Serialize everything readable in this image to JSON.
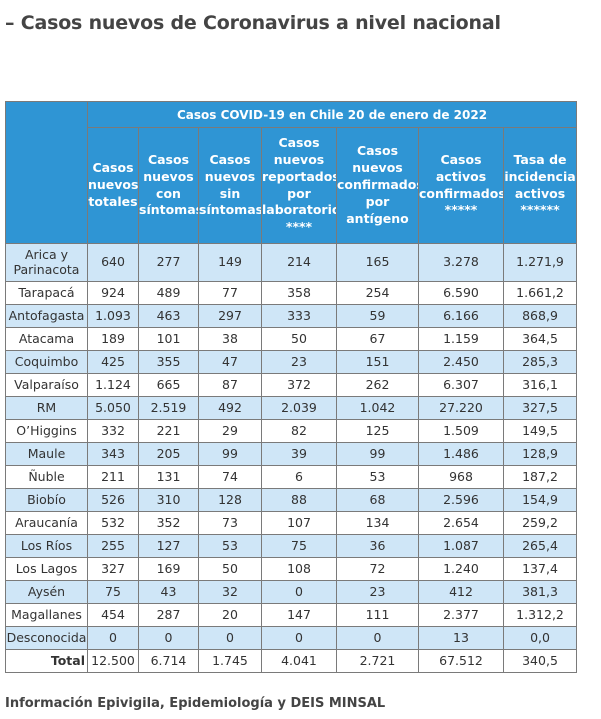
{
  "page": {
    "title": "– Casos nuevos de Coronavirus a nivel nacional",
    "source": "Información Epivigila, Epidemiología y DEIS MINSAL"
  },
  "table": {
    "super_header": "Casos COVID-19 en Chile 20 de enero de 2022",
    "columns": [
      "Casos nuevos totales",
      "Casos nuevos con síntomas",
      "Casos nuevos sin síntomas",
      "Casos nuevos reportados por laboratorio ****",
      "Casos nuevos confirmados por antígeno",
      "Casos activos confirmados *****",
      "Tasa de incidencia activos ******"
    ],
    "rows": [
      {
        "region": "Arica y Parinacota",
        "values": [
          "640",
          "277",
          "149",
          "214",
          "165",
          "3.278",
          "1.271,9"
        ]
      },
      {
        "region": "Tarapacá",
        "values": [
          "924",
          "489",
          "77",
          "358",
          "254",
          "6.590",
          "1.661,2"
        ]
      },
      {
        "region": "Antofagasta",
        "values": [
          "1.093",
          "463",
          "297",
          "333",
          "59",
          "6.166",
          "868,9"
        ]
      },
      {
        "region": "Atacama",
        "values": [
          "189",
          "101",
          "38",
          "50",
          "67",
          "1.159",
          "364,5"
        ]
      },
      {
        "region": "Coquimbo",
        "values": [
          "425",
          "355",
          "47",
          "23",
          "151",
          "2.450",
          "285,3"
        ]
      },
      {
        "region": "Valparaíso",
        "values": [
          "1.124",
          "665",
          "87",
          "372",
          "262",
          "6.307",
          "316,1"
        ]
      },
      {
        "region": "RM",
        "values": [
          "5.050",
          "2.519",
          "492",
          "2.039",
          "1.042",
          "27.220",
          "327,5"
        ]
      },
      {
        "region": "O’Higgins",
        "values": [
          "332",
          "221",
          "29",
          "82",
          "125",
          "1.509",
          "149,5"
        ]
      },
      {
        "region": "Maule",
        "values": [
          "343",
          "205",
          "99",
          "39",
          "99",
          "1.486",
          "128,9"
        ]
      },
      {
        "region": "Ñuble",
        "values": [
          "211",
          "131",
          "74",
          "6",
          "53",
          "968",
          "187,2"
        ]
      },
      {
        "region": "Biobío",
        "values": [
          "526",
          "310",
          "128",
          "88",
          "68",
          "2.596",
          "154,9"
        ]
      },
      {
        "region": "Araucanía",
        "values": [
          "532",
          "352",
          "73",
          "107",
          "134",
          "2.654",
          "259,2"
        ]
      },
      {
        "region": "Los Ríos",
        "values": [
          "255",
          "127",
          "53",
          "75",
          "36",
          "1.087",
          "265,4"
        ]
      },
      {
        "region": "Los Lagos",
        "values": [
          "327",
          "169",
          "50",
          "108",
          "72",
          "1.240",
          "137,4"
        ]
      },
      {
        "region": "Aysén",
        "values": [
          "75",
          "43",
          "32",
          "0",
          "23",
          "412",
          "381,3"
        ]
      },
      {
        "region": "Magallanes",
        "values": [
          "454",
          "287",
          "20",
          "147",
          "111",
          "2.377",
          "1.312,2"
        ]
      },
      {
        "region": "Desconocida",
        "values": [
          "0",
          "0",
          "0",
          "0",
          "0",
          "13",
          "0,0"
        ]
      }
    ],
    "total": {
      "label": "Total",
      "values": [
        "12.500",
        "6.714",
        "1.745",
        "4.041",
        "2.721",
        "67.512",
        "340,5"
      ]
    }
  }
}
